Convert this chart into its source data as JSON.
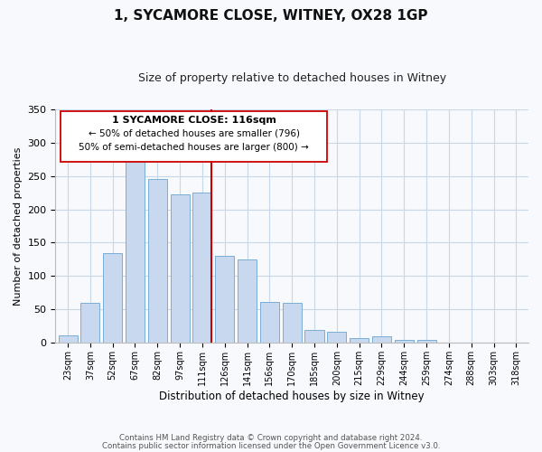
{
  "title": "1, SYCAMORE CLOSE, WITNEY, OX28 1GP",
  "subtitle": "Size of property relative to detached houses in Witney",
  "xlabel": "Distribution of detached houses by size in Witney",
  "ylabel": "Number of detached properties",
  "footer_line1": "Contains HM Land Registry data © Crown copyright and database right 2024.",
  "footer_line2": "Contains public sector information licensed under the Open Government Licence v3.0.",
  "bar_labels": [
    "23sqm",
    "37sqm",
    "52sqm",
    "67sqm",
    "82sqm",
    "97sqm",
    "111sqm",
    "126sqm",
    "141sqm",
    "156sqm",
    "170sqm",
    "185sqm",
    "200sqm",
    "215sqm",
    "229sqm",
    "244sqm",
    "259sqm",
    "274sqm",
    "288sqm",
    "303sqm",
    "318sqm"
  ],
  "bar_values": [
    11,
    60,
    135,
    278,
    245,
    222,
    225,
    130,
    125,
    62,
    60,
    19,
    17,
    8,
    10,
    4,
    5,
    0,
    0,
    0,
    0
  ],
  "bar_color": "#c8d9ef",
  "bar_edge_color": "#7aaed6",
  "ylim": [
    0,
    350
  ],
  "yticks": [
    0,
    50,
    100,
    150,
    200,
    250,
    300,
    350
  ],
  "vline_color": "#cc0000",
  "annotation_title": "1 SYCAMORE CLOSE: 116sqm",
  "annotation_line1": "← 50% of detached houses are smaller (796)",
  "annotation_line2": "50% of semi-detached houses are larger (800) →",
  "bg_color": "#f7f9fc",
  "grid_color": "#c8d8e8"
}
